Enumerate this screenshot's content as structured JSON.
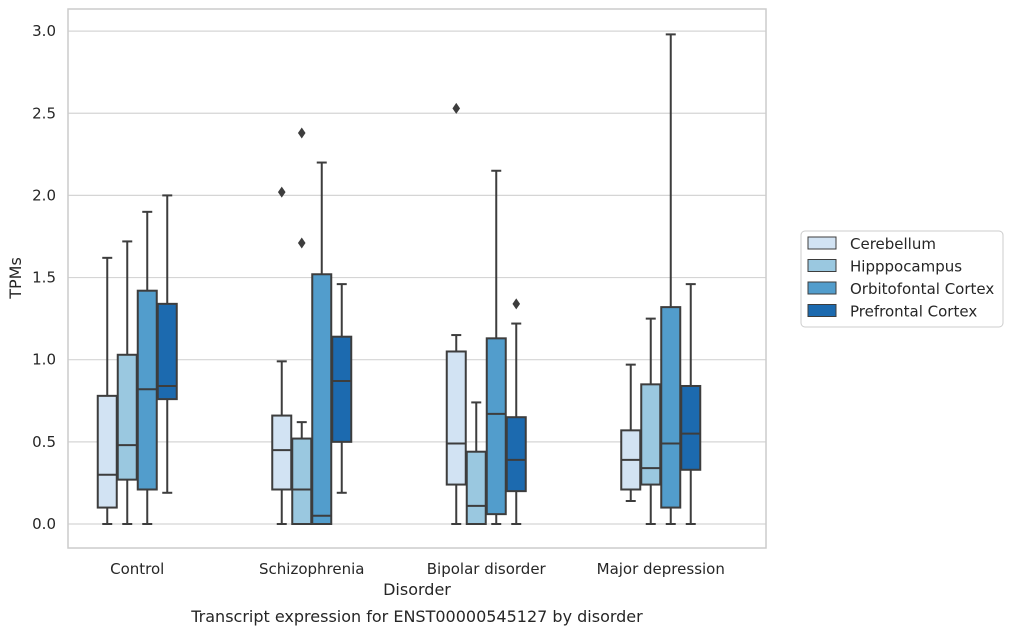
{
  "chart_data": {
    "type": "box",
    "xlabel": "Disorder",
    "ylabel": "TPMs",
    "caption": "Transcript expression for ENST00000545127 by disorder",
    "ylim": [
      -0.15,
      3.15
    ],
    "yticks": [
      "0.0",
      "0.5",
      "1.0",
      "1.5",
      "2.0",
      "2.5",
      "3.0"
    ],
    "ytick_values": [
      0,
      0.5,
      1.0,
      1.5,
      2.0,
      2.5,
      3.0
    ],
    "grid": true,
    "legend_placement": "right-center",
    "categories": [
      "Control",
      "Schizophrenia",
      "Bipolar disorder",
      "Major depression"
    ],
    "series": [
      {
        "name": "Cerebellum",
        "color": "#d2e3f3",
        "boxes": [
          {
            "whisker_low": 0.0,
            "q1": 0.1,
            "median": 0.3,
            "q3": 0.78,
            "whisker_high": 1.62,
            "outliers": []
          },
          {
            "whisker_low": 0.0,
            "q1": 0.21,
            "median": 0.45,
            "q3": 0.66,
            "whisker_high": 0.99,
            "outliers": [
              2.02
            ]
          },
          {
            "whisker_low": 0.0,
            "q1": 0.24,
            "median": 0.49,
            "q3": 1.05,
            "whisker_high": 1.15,
            "outliers": [
              2.53
            ]
          },
          {
            "whisker_low": 0.14,
            "q1": 0.21,
            "median": 0.39,
            "q3": 0.57,
            "whisker_high": 0.97,
            "outliers": []
          }
        ]
      },
      {
        "name": "Hipppocampus",
        "color": "#9ac8e0",
        "boxes": [
          {
            "whisker_low": 0.0,
            "q1": 0.27,
            "median": 0.48,
            "q3": 1.03,
            "whisker_high": 1.72,
            "outliers": []
          },
          {
            "whisker_low": 0.0,
            "q1": 0.0,
            "median": 0.21,
            "q3": 0.52,
            "whisker_high": 0.62,
            "outliers": [
              1.71,
              2.38
            ]
          },
          {
            "whisker_low": 0.0,
            "q1": 0.0,
            "median": 0.11,
            "q3": 0.44,
            "whisker_high": 0.74,
            "outliers": []
          },
          {
            "whisker_low": 0.0,
            "q1": 0.24,
            "median": 0.34,
            "q3": 0.85,
            "whisker_high": 1.25,
            "outliers": []
          }
        ]
      },
      {
        "name": "Orbitofontal Cortex",
        "color": "#529dcc",
        "boxes": [
          {
            "whisker_low": 0.0,
            "q1": 0.21,
            "median": 0.82,
            "q3": 1.42,
            "whisker_high": 1.9,
            "outliers": []
          },
          {
            "whisker_low": 0.0,
            "q1": 0.0,
            "median": 0.05,
            "q3": 1.52,
            "whisker_high": 2.2,
            "outliers": []
          },
          {
            "whisker_low": 0.0,
            "q1": 0.06,
            "median": 0.67,
            "q3": 1.13,
            "whisker_high": 2.15,
            "outliers": []
          },
          {
            "whisker_low": 0.0,
            "q1": 0.1,
            "median": 0.49,
            "q3": 1.32,
            "whisker_high": 2.98,
            "outliers": []
          }
        ]
      },
      {
        "name": "Prefrontal Cortex",
        "color": "#1c6aaf",
        "boxes": [
          {
            "whisker_low": 0.19,
            "q1": 0.76,
            "median": 0.84,
            "q3": 1.34,
            "whisker_high": 2.0,
            "outliers": []
          },
          {
            "whisker_low": 0.19,
            "q1": 0.5,
            "median": 0.87,
            "q3": 1.14,
            "whisker_high": 1.46,
            "outliers": []
          },
          {
            "whisker_low": 0.0,
            "q1": 0.2,
            "median": 0.39,
            "q3": 0.65,
            "whisker_high": 1.22,
            "outliers": [
              1.34
            ]
          },
          {
            "whisker_low": 0.0,
            "q1": 0.33,
            "median": 0.55,
            "q3": 0.84,
            "whisker_high": 1.46,
            "outliers": []
          }
        ]
      }
    ]
  }
}
